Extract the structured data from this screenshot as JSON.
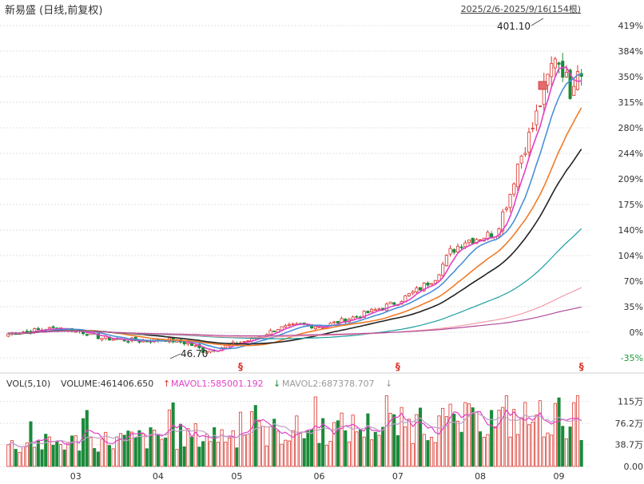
{
  "header": {
    "title": "新易盛 (日线,前复权)",
    "range": "2025/2/6-2025/9/16(154根)"
  },
  "volume_header": {
    "label": "VOL(5,10)",
    "volume": "VOLUME:461406.650",
    "mavol1": "MAVOL1:585001.192",
    "mavol1_arrow": "↑",
    "mavol2": "MAVOL2:687378.707",
    "mavol2_arrow": "↓",
    "mavol2_end_arrow": "↓"
  },
  "annotations": {
    "high_label": "401.10",
    "low_label": "46.70",
    "marker_glyph": "§"
  },
  "colors": {
    "up": "#d9342b",
    "down": "#1a8a3a",
    "ma1": "#e23fc6",
    "ma2": "#4b8fd6",
    "ma3": "#f07b28",
    "ma4": "#222222",
    "ma5": "#1a9ea0",
    "ma6": "#f19aa8",
    "ma7": "#b24a9a",
    "grid": "#e2e2e2",
    "axis_text": "#333333",
    "negative": "#1a9a3a"
  },
  "chart_data": [
    {
      "type": "candlestick",
      "y_unit": "percent",
      "ylim": [
        -35,
        419
      ],
      "y_ticks": [
        "419%",
        "384%",
        "350%",
        "315%",
        "280%",
        "244%",
        "209%",
        "175%",
        "140%",
        "104%",
        "70%",
        "35%",
        "0%",
        "-35%"
      ],
      "x_ticks": [
        "03",
        "04",
        "05",
        "06",
        "07",
        "08",
        "09"
      ],
      "period": "2025/2/6-2025/9/16",
      "bars": 154,
      "price_high": 401.1,
      "price_low": 46.7,
      "close_path_percent": [
        [
          0,
          -2
        ],
        [
          8,
          3
        ],
        [
          14,
          6
        ],
        [
          20,
          0
        ],
        [
          25,
          -8
        ],
        [
          30,
          -10
        ],
        [
          36,
          -12
        ],
        [
          42,
          -10
        ],
        [
          48,
          -15
        ],
        [
          52,
          -25
        ],
        [
          56,
          -22
        ],
        [
          62,
          -14
        ],
        [
          66,
          -8
        ],
        [
          72,
          5
        ],
        [
          78,
          10
        ],
        [
          84,
          8
        ],
        [
          92,
          20
        ],
        [
          98,
          30
        ],
        [
          104,
          42
        ],
        [
          110,
          60
        ],
        [
          114,
          75
        ],
        [
          118,
          110
        ],
        [
          122,
          125
        ],
        [
          126,
          130
        ],
        [
          130,
          135
        ],
        [
          134,
          190
        ],
        [
          136,
          230
        ],
        [
          140,
          280
        ],
        [
          143,
          330
        ],
        [
          146,
          380
        ],
        [
          148,
          360
        ],
        [
          150,
          330
        ],
        [
          152,
          365
        ],
        [
          153,
          355
        ]
      ],
      "moving_averages": 7,
      "markers": [
        {
          "label": "§",
          "bar": 62
        },
        {
          "label": "§",
          "bar": 104
        },
        {
          "label": "§",
          "bar": 153
        }
      ]
    },
    {
      "type": "bar",
      "name": "VOL(5,10)",
      "y_ticks": [
        "115万",
        "76.2万",
        "38.7万",
        "0.00"
      ],
      "ylim": [
        0,
        1300000
      ],
      "volume": 461406.65,
      "mavol1": 585001.192,
      "mavol2": 687378.707
    }
  ]
}
